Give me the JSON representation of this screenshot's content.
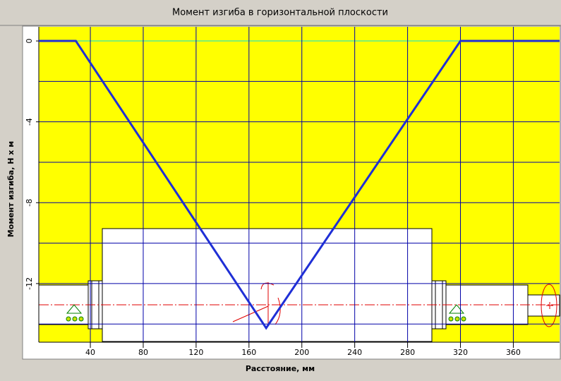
{
  "chart_data": {
    "type": "line",
    "title": "Момент изгиба в горизонтальной плоскости",
    "x_label": "Расстояние, мм",
    "y_label": "Момент изгиба, Н х м",
    "x": [
      1,
      29,
      173,
      320,
      395
    ],
    "series": [
      {
        "name": "Момент изгиба",
        "color": "#1f2fd6",
        "values": [
          0,
          0,
          -14.2,
          0,
          0
        ]
      }
    ],
    "xlim": [
      1,
      395
    ],
    "ylim": [
      0.7,
      -14.9
    ],
    "xticks": [
      40,
      80,
      120,
      160,
      200,
      240,
      280,
      320,
      360
    ],
    "yticks": [
      0,
      -4,
      -8,
      -12
    ],
    "yminor": [
      -2,
      -6,
      -10,
      -14
    ],
    "grid": true,
    "background": "#ffff00",
    "grid_color": "#0000a8"
  }
}
